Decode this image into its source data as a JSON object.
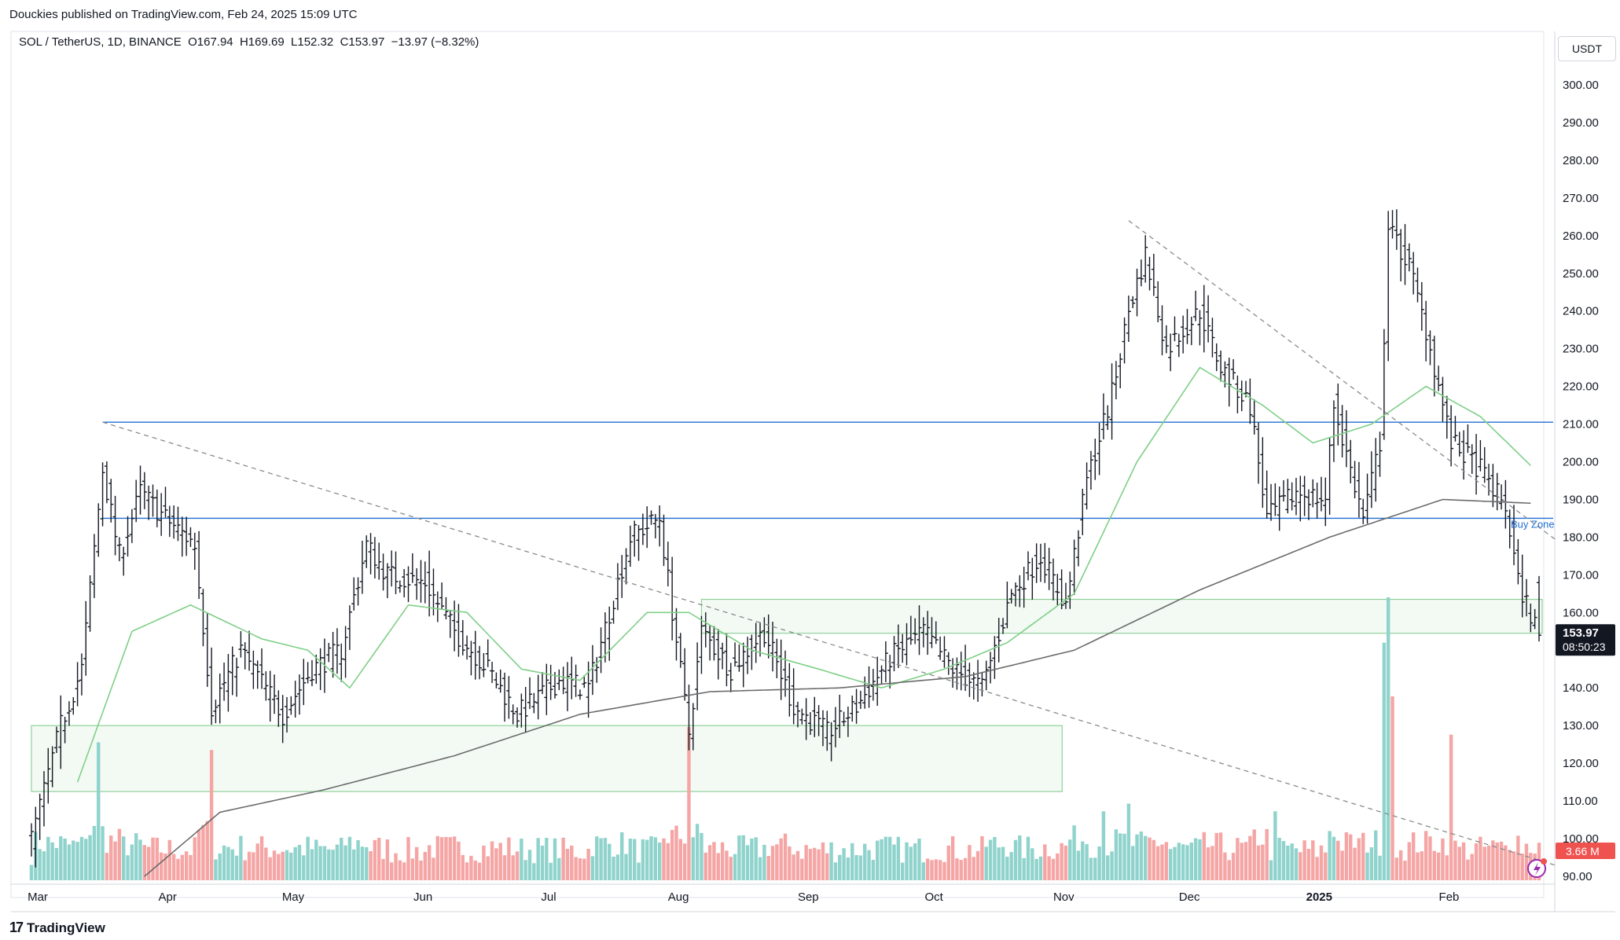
{
  "header": {
    "published": "Douckies published on TradingView.com, Feb 24, 2025 15:09 UTC"
  },
  "legend": {
    "symbol": "SOL / TetherUS, 1D, BINANCE",
    "ohlc": "O167.94  H169.69  L152.32  C153.97  −13.97 (−8.32%)"
  },
  "axis": {
    "unit": "USDT",
    "y_ticks": [
      "300.00",
      "290.00",
      "280.00",
      "270.00",
      "260.00",
      "250.00",
      "240.00",
      "230.00",
      "220.00",
      "210.00",
      "200.00",
      "190.00",
      "180.00",
      "170.00",
      "160.00",
      "150.00",
      "140.00",
      "130.00",
      "120.00",
      "110.00",
      "100.00",
      "90.00"
    ],
    "x_ticks": [
      "Mar",
      "Apr",
      "May",
      "Jun",
      "Jul",
      "Aug",
      "Sep",
      "Oct",
      "Nov",
      "Dec",
      "2025",
      "Feb"
    ]
  },
  "price_badge": {
    "price": "153.97",
    "countdown": "08:50:23"
  },
  "volume_badge": {
    "value": "3.66 M"
  },
  "annotations": {
    "buy_zone": "Buy Zone"
  },
  "footer": {
    "brand": "TradingView"
  },
  "colors": {
    "up": "#26a69a",
    "down": "#ef5350",
    "volume_up": "#8fd3cc",
    "volume_down": "#f4a5a4",
    "ma_short": "#7fcf87",
    "ma_long": "#6b6b6b",
    "resistance": "#1f6fd1",
    "zone": "#8fd19a",
    "trend": "#8a8a8a",
    "badge": "#131722"
  },
  "chart_data": {
    "type": "ohlc",
    "title": "SOL / TetherUS, 1D, BINANCE",
    "ylabel": "USDT",
    "ylim": [
      88,
      305
    ],
    "x_range": [
      "2024-03-01",
      "2025-02-24"
    ],
    "price_keypoints": [
      {
        "date": "2024-03-01",
        "price": 100
      },
      {
        "date": "2024-03-08",
        "price": 130
      },
      {
        "date": "2024-03-13",
        "price": 145
      },
      {
        "date": "2024-03-18",
        "price": 198
      },
      {
        "date": "2024-03-22",
        "price": 175
      },
      {
        "date": "2024-03-27",
        "price": 192
      },
      {
        "date": "2024-04-02",
        "price": 185
      },
      {
        "date": "2024-04-09",
        "price": 178
      },
      {
        "date": "2024-04-13",
        "price": 135
      },
      {
        "date": "2024-04-20",
        "price": 150
      },
      {
        "date": "2024-04-30",
        "price": 133
      },
      {
        "date": "2024-05-07",
        "price": 145
      },
      {
        "date": "2024-05-14",
        "price": 150
      },
      {
        "date": "2024-05-20",
        "price": 178
      },
      {
        "date": "2024-05-25",
        "price": 170
      },
      {
        "date": "2024-06-03",
        "price": 168
      },
      {
        "date": "2024-06-10",
        "price": 155
      },
      {
        "date": "2024-06-18",
        "price": 145
      },
      {
        "date": "2024-06-25",
        "price": 133
      },
      {
        "date": "2024-07-05",
        "price": 142
      },
      {
        "date": "2024-07-12",
        "price": 140
      },
      {
        "date": "2024-07-22",
        "price": 180
      },
      {
        "date": "2024-07-29",
        "price": 185
      },
      {
        "date": "2024-08-05",
        "price": 128
      },
      {
        "date": "2024-08-08",
        "price": 155
      },
      {
        "date": "2024-08-15",
        "price": 145
      },
      {
        "date": "2024-08-23",
        "price": 155
      },
      {
        "date": "2024-08-30",
        "price": 135
      },
      {
        "date": "2024-09-07",
        "price": 128
      },
      {
        "date": "2024-09-14",
        "price": 135
      },
      {
        "date": "2024-09-22",
        "price": 148
      },
      {
        "date": "2024-09-30",
        "price": 155
      },
      {
        "date": "2024-10-07",
        "price": 145
      },
      {
        "date": "2024-10-14",
        "price": 140
      },
      {
        "date": "2024-10-21",
        "price": 165
      },
      {
        "date": "2024-10-28",
        "price": 175
      },
      {
        "date": "2024-11-03",
        "price": 162
      },
      {
        "date": "2024-11-08",
        "price": 195
      },
      {
        "date": "2024-11-14",
        "price": 218
      },
      {
        "date": "2024-11-18",
        "price": 240
      },
      {
        "date": "2024-11-22",
        "price": 255
      },
      {
        "date": "2024-11-27",
        "price": 230
      },
      {
        "date": "2024-12-05",
        "price": 240
      },
      {
        "date": "2024-12-10",
        "price": 225
      },
      {
        "date": "2024-12-17",
        "price": 215
      },
      {
        "date": "2024-12-21",
        "price": 185
      },
      {
        "date": "2024-12-28",
        "price": 192
      },
      {
        "date": "2025-01-04",
        "price": 190
      },
      {
        "date": "2025-01-06",
        "price": 215
      },
      {
        "date": "2025-01-13",
        "price": 185
      },
      {
        "date": "2025-01-17",
        "price": 205
      },
      {
        "date": "2025-01-19",
        "price": 262
      },
      {
        "date": "2025-01-24",
        "price": 252
      },
      {
        "date": "2025-01-28",
        "price": 235
      },
      {
        "date": "2025-02-03",
        "price": 205
      },
      {
        "date": "2025-02-10",
        "price": 198
      },
      {
        "date": "2025-02-16",
        "price": 188
      },
      {
        "date": "2025-02-19",
        "price": 168
      },
      {
        "date": "2025-02-24",
        "price": 153.97
      }
    ],
    "ma_short_keypoints": [
      {
        "date": "2024-03-12",
        "price": 115
      },
      {
        "date": "2024-03-25",
        "price": 155
      },
      {
        "date": "2024-04-08",
        "price": 162
      },
      {
        "date": "2024-04-25",
        "price": 153
      },
      {
        "date": "2024-05-06",
        "price": 150
      },
      {
        "date": "2024-05-16",
        "price": 140
      },
      {
        "date": "2024-05-30",
        "price": 162
      },
      {
        "date": "2024-06-13",
        "price": 160
      },
      {
        "date": "2024-06-26",
        "price": 145
      },
      {
        "date": "2024-07-10",
        "price": 142
      },
      {
        "date": "2024-07-26",
        "price": 160
      },
      {
        "date": "2024-08-05",
        "price": 160
      },
      {
        "date": "2024-08-20",
        "price": 150
      },
      {
        "date": "2024-09-05",
        "price": 145
      },
      {
        "date": "2024-09-20",
        "price": 140
      },
      {
        "date": "2024-10-05",
        "price": 145
      },
      {
        "date": "2024-10-20",
        "price": 152
      },
      {
        "date": "2024-11-05",
        "price": 165
      },
      {
        "date": "2024-11-20",
        "price": 200
      },
      {
        "date": "2024-12-05",
        "price": 225
      },
      {
        "date": "2024-12-20",
        "price": 215
      },
      {
        "date": "2025-01-01",
        "price": 205
      },
      {
        "date": "2025-01-15",
        "price": 210
      },
      {
        "date": "2025-01-28",
        "price": 220
      },
      {
        "date": "2025-02-10",
        "price": 212
      },
      {
        "date": "2025-02-22",
        "price": 199
      }
    ],
    "ma_long_keypoints": [
      {
        "date": "2024-03-28",
        "price": 90
      },
      {
        "date": "2024-04-15",
        "price": 107
      },
      {
        "date": "2024-05-10",
        "price": 113
      },
      {
        "date": "2024-06-10",
        "price": 122
      },
      {
        "date": "2024-07-10",
        "price": 133
      },
      {
        "date": "2024-08-10",
        "price": 139
      },
      {
        "date": "2024-09-10",
        "price": 140
      },
      {
        "date": "2024-10-10",
        "price": 143
      },
      {
        "date": "2024-11-05",
        "price": 150
      },
      {
        "date": "2024-12-05",
        "price": 166
      },
      {
        "date": "2025-01-05",
        "price": 180
      },
      {
        "date": "2025-02-01",
        "price": 190
      },
      {
        "date": "2025-02-22",
        "price": 189
      }
    ],
    "horizontal_levels": [
      {
        "price": 210.5,
        "from": "2024-03-18",
        "to": "2025-02-24",
        "style": "solid"
      },
      {
        "price": 185,
        "from": "2024-03-18",
        "to": "2025-02-24",
        "style": "solid"
      }
    ],
    "zones": [
      {
        "from": "2024-03-01",
        "to": "2024-11-01",
        "top": 130,
        "bottom": 112.5
      },
      {
        "from": "2024-08-08",
        "to": "2025-02-24",
        "top": 163.5,
        "bottom": 154.5
      }
    ],
    "trendlines": [
      {
        "from": {
          "date": "2024-03-18",
          "price": 210.5
        },
        "to": {
          "date": "2025-02-24",
          "price": 93
        }
      },
      {
        "from": {
          "date": "2024-11-18",
          "price": 264
        },
        "to": {
          "date": "2025-02-24",
          "price": 179.5
        }
      }
    ],
    "volume_spikes": [
      {
        "date": "2024-03-17",
        "volume": 0.9
      },
      {
        "date": "2024-04-13",
        "volume": 0.85
      },
      {
        "date": "2024-08-05",
        "volume": 1.0
      },
      {
        "date": "2024-11-12",
        "volume": 0.45
      },
      {
        "date": "2024-11-18",
        "volume": 0.5
      },
      {
        "date": "2024-12-23",
        "volume": 0.45
      },
      {
        "date": "2025-01-18",
        "volume": 1.55
      },
      {
        "date": "2025-01-19",
        "volume": 1.85
      },
      {
        "date": "2025-01-20",
        "volume": 1.2
      },
      {
        "date": "2025-02-03",
        "volume": 0.95
      }
    ]
  }
}
